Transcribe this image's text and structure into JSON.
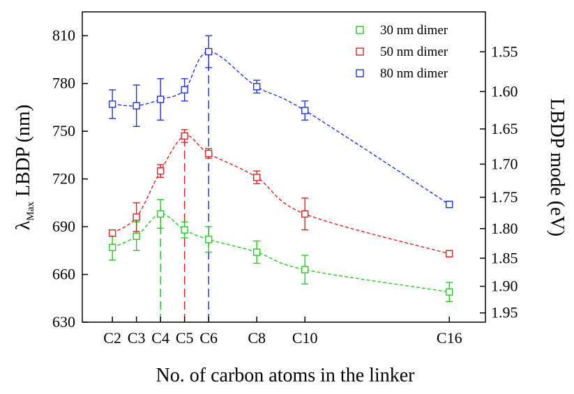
{
  "chart_data": {
    "type": "scatter",
    "xlabel": "No. of carbon atoms in the linker",
    "ylabel_main": "λ",
    "ylabel_sub": "Max",
    "ylabel_rest": " LBDP (nm)",
    "y2label": "LBDP  mode (eV)",
    "categories": [
      "C2",
      "C3",
      "C4",
      "C5",
      "C6",
      "C8",
      "C10",
      "C16"
    ],
    "x": [
      2,
      3,
      4,
      5,
      6,
      8,
      10,
      16
    ],
    "ylim": [
      630,
      825
    ],
    "yticks": [
      630,
      660,
      690,
      720,
      750,
      780,
      810
    ],
    "y2ticks": [
      "1.55",
      "1.60",
      "1.65",
      "1.70",
      "1.75",
      "1.80",
      "1.85",
      "1.90",
      "1.95"
    ],
    "legend_position": "top-right",
    "series": [
      {
        "name": "30 nm dimer",
        "color": "#22cc22",
        "values": [
          677,
          684,
          698,
          688,
          682,
          674,
          663,
          649
        ],
        "errors": [
          8,
          9,
          9,
          5,
          8,
          7,
          9,
          6
        ],
        "peak_x": 4
      },
      {
        "name": "50 nm dimer",
        "color": "#dd2222",
        "values": [
          686,
          696,
          725,
          747,
          736,
          721,
          698,
          673
        ],
        "errors": [
          2,
          9,
          4,
          4,
          3,
          4,
          10,
          2
        ],
        "peak_x": 5
      },
      {
        "name": "80 nm dimer",
        "color": "#2233dd",
        "values": [
          767,
          766,
          770,
          776,
          800,
          778,
          763,
          704
        ],
        "errors": [
          9,
          13,
          13,
          7,
          10,
          4,
          6,
          2
        ],
        "peak_x": 6
      }
    ]
  }
}
